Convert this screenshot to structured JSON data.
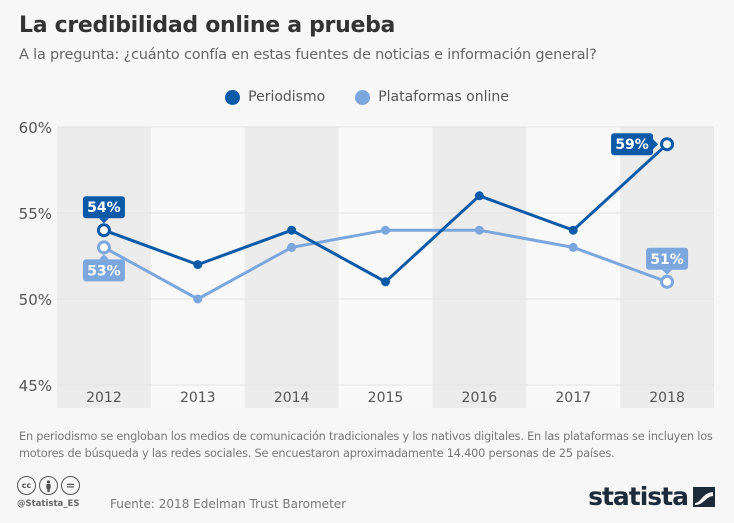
{
  "header": {
    "title": "La credibilidad online a prueba",
    "subtitle": "A la pregunta: ¿cuánto confía en estas fuentes de noticias e información general?"
  },
  "legend": [
    {
      "label": "Periodismo",
      "color": "#0b5aa8"
    },
    {
      "label": "Plataformas online",
      "color": "#7ba6de"
    }
  ],
  "chart_data": {
    "type": "line",
    "title": "La credibilidad online a prueba",
    "subtitle": "A la pregunta: ¿cuánto confía en estas fuentes de noticias e información general?",
    "xlabel": "",
    "ylabel": "",
    "categories": [
      "2012",
      "2013",
      "2014",
      "2015",
      "2016",
      "2017",
      "2018"
    ],
    "series": [
      {
        "name": "Periodismo",
        "color": "#0b5aa8",
        "values": [
          54,
          52,
          54,
          51,
          56,
          54,
          59
        ]
      },
      {
        "name": "Plataformas online",
        "color": "#7ba6de",
        "values": [
          53,
          50,
          53,
          54,
          54,
          53,
          51
        ]
      }
    ],
    "ylim": [
      45,
      60
    ],
    "yticks": [
      45,
      50,
      55,
      60
    ],
    "ytick_labels": [
      "45%",
      "50%",
      "55%",
      "60%"
    ],
    "grid": true,
    "legend_position": "top-center",
    "annotations": [
      {
        "series": "Periodismo",
        "category": "2012",
        "label": "54%"
      },
      {
        "series": "Plataformas online",
        "category": "2012",
        "label": "53%"
      },
      {
        "series": "Periodismo",
        "category": "2018",
        "label": "59%"
      },
      {
        "series": "Plataformas online",
        "category": "2018",
        "label": "51%"
      }
    ]
  },
  "footer": {
    "note": "En periodismo se engloban los medios de comunicación tradicionales y los nativos digitales. En las plataformas se incluyen los motores de búsqueda y las redes sociales. Se encuestaron aproximadamente 14.400 personas de 25 países.",
    "cc_icons": [
      {
        "name": "cc-icon",
        "glyph": "cc"
      },
      {
        "name": "attribution-icon",
        "glyph": "👤"
      },
      {
        "name": "no-derivatives-icon",
        "glyph": "="
      }
    ],
    "handle": "@Statista_ES",
    "source": "Fuente: 2018 Edelman Trust Barometer",
    "logo": "statista"
  }
}
